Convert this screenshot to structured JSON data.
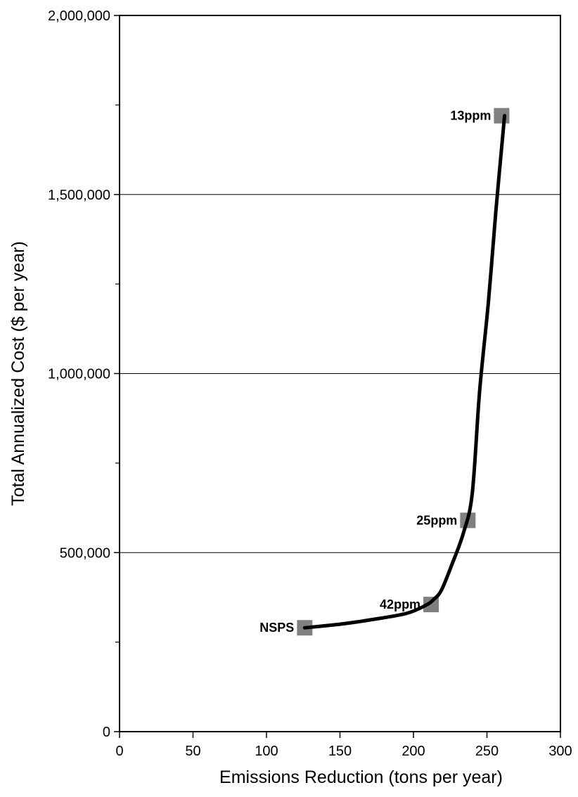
{
  "chart_data": {
    "type": "line",
    "title": "",
    "xlabel": "Emissions Reduction (tons per year)",
    "ylabel": "Total Annualized Cost ($ per year)",
    "xlim": [
      0,
      300
    ],
    "ylim": [
      0,
      2000000
    ],
    "x_ticks": [
      0,
      50,
      100,
      150,
      200,
      250,
      300
    ],
    "x_tick_labels": [
      "0",
      "50",
      "100",
      "150",
      "200",
      "250",
      "300"
    ],
    "y_ticks": [
      0,
      500000,
      1000000,
      1500000,
      2000000
    ],
    "y_tick_labels": [
      "0",
      "500,000",
      "1,000,000",
      "1,500,000",
      "2,000,000"
    ],
    "y_minor_ticks": [
      250000,
      750000,
      1250000,
      1750000
    ],
    "grid": "horizontal at major y ticks",
    "legend": "none",
    "colors": {
      "curve": "#000000",
      "marker": "#808080",
      "grid": "#000000"
    },
    "curve": {
      "x": [
        126,
        150,
        172,
        195,
        208,
        214,
        219,
        226,
        234,
        240,
        245,
        251,
        256,
        262
      ],
      "y": [
        290000,
        300000,
        313000,
        330000,
        352000,
        370000,
        395000,
        465000,
        555000,
        665000,
        950000,
        1200000,
        1450000,
        1720000
      ]
    },
    "points": [
      {
        "label": "NSPS",
        "x": 126,
        "y": 290000
      },
      {
        "label": "42ppm",
        "x": 212,
        "y": 355000
      },
      {
        "label": "25ppm",
        "x": 237,
        "y": 590000
      },
      {
        "label": "13ppm",
        "x": 260,
        "y": 1720000
      }
    ]
  }
}
